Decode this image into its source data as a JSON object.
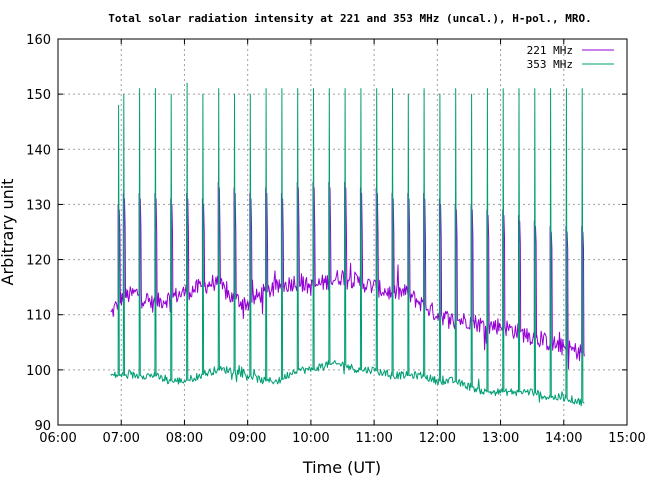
{
  "chart_data": {
    "type": "line",
    "title": "Total solar radiation intensity at 221 and 353 MHz (uncal.), H-pol., MRO.",
    "xlabel": "Time (UT)",
    "ylabel": "Arbitrary unit",
    "xlim": [
      "06:00",
      "15:00"
    ],
    "ylim": [
      90,
      160
    ],
    "xticks": [
      "06:00",
      "07:00",
      "08:00",
      "09:00",
      "10:00",
      "11:00",
      "12:00",
      "13:00",
      "14:00",
      "15:00"
    ],
    "yticks": [
      "90",
      "100",
      "110",
      "120",
      "130",
      "140",
      "150",
      "160"
    ],
    "grid": true,
    "legend_position": "top-right",
    "time_range": [
      "06:50",
      "14:20"
    ],
    "calibration_pulse_times": [
      "06:57",
      "07:02",
      "07:17",
      "07:32",
      "07:47",
      "08:02",
      "08:17",
      "08:32",
      "08:47",
      "09:02",
      "09:17",
      "09:32",
      "09:47",
      "10:02",
      "10:17",
      "10:32",
      "10:47",
      "11:02",
      "11:17",
      "11:32",
      "11:47",
      "12:02",
      "12:17",
      "12:32",
      "12:47",
      "13:02",
      "13:17",
      "13:32",
      "13:47",
      "14:02",
      "14:17"
    ],
    "series": [
      {
        "name": "221 MHz",
        "color": "#9400d3",
        "baseline": [
          [
            "06:50",
            110
          ],
          [
            "07:00",
            113
          ],
          [
            "07:15",
            114
          ],
          [
            "07:30",
            112
          ],
          [
            "07:45",
            113
          ],
          [
            "08:00",
            114
          ],
          [
            "08:15",
            115
          ],
          [
            "08:30",
            116
          ],
          [
            "08:45",
            113
          ],
          [
            "09:00",
            112
          ],
          [
            "09:15",
            114
          ],
          [
            "09:30",
            115
          ],
          [
            "09:45",
            116
          ],
          [
            "10:00",
            115
          ],
          [
            "10:15",
            116
          ],
          [
            "10:30",
            117
          ],
          [
            "10:45",
            116
          ],
          [
            "11:00",
            115
          ],
          [
            "11:15",
            114
          ],
          [
            "11:30",
            114
          ],
          [
            "11:45",
            112
          ],
          [
            "12:00",
            110
          ],
          [
            "12:15",
            109
          ],
          [
            "12:30",
            109
          ],
          [
            "12:45",
            108
          ],
          [
            "13:00",
            108
          ],
          [
            "13:15",
            107
          ],
          [
            "13:30",
            106
          ],
          [
            "13:45",
            105
          ],
          [
            "14:00",
            104
          ],
          [
            "14:20",
            103
          ]
        ],
        "pulse_peaks": [
          130,
          132,
          132,
          132,
          131,
          132,
          131,
          134,
          133,
          132,
          133,
          132,
          134,
          134,
          134,
          134,
          133,
          133,
          132,
          132,
          132,
          131,
          130,
          130,
          129,
          129,
          128,
          127,
          126,
          126,
          126
        ],
        "pulse_lows": [
          125,
          126,
          126,
          125,
          125,
          125,
          125,
          125,
          125,
          125,
          125,
          125,
          125,
          125,
          125,
          125,
          125,
          125,
          125,
          125,
          124,
          124,
          124,
          124,
          124,
          124,
          123,
          123,
          122,
          122,
          122
        ]
      },
      {
        "name": "353 MHz",
        "color": "#009e73",
        "baseline": [
          [
            "06:50",
            99
          ],
          [
            "07:00",
            99
          ],
          [
            "07:15",
            99
          ],
          [
            "07:30",
            99
          ],
          [
            "07:45",
            98
          ],
          [
            "08:00",
            98
          ],
          [
            "08:15",
            99
          ],
          [
            "08:30",
            100
          ],
          [
            "08:45",
            100
          ],
          [
            "09:00",
            99
          ],
          [
            "09:15",
            98
          ],
          [
            "09:30",
            98
          ],
          [
            "09:45",
            100
          ],
          [
            "10:00",
            100
          ],
          [
            "10:15",
            101
          ],
          [
            "10:30",
            101
          ],
          [
            "10:45",
            100
          ],
          [
            "11:00",
            100
          ],
          [
            "11:15",
            99
          ],
          [
            "11:30",
            99
          ],
          [
            "11:45",
            99
          ],
          [
            "12:00",
            98
          ],
          [
            "12:15",
            98
          ],
          [
            "12:30",
            97
          ],
          [
            "12:45",
            96
          ],
          [
            "13:00",
            96
          ],
          [
            "13:15",
            96
          ],
          [
            "13:30",
            96
          ],
          [
            "13:45",
            95
          ],
          [
            "14:00",
            95
          ],
          [
            "14:20",
            94
          ]
        ],
        "pulse_peaks": [
          148,
          150,
          151,
          151,
          150,
          152,
          150,
          151,
          150,
          150,
          151,
          151,
          151,
          151,
          151,
          151,
          151,
          151,
          151,
          150,
          151,
          150,
          151,
          150,
          151,
          151,
          151,
          151,
          151,
          151,
          151
        ]
      }
    ]
  }
}
